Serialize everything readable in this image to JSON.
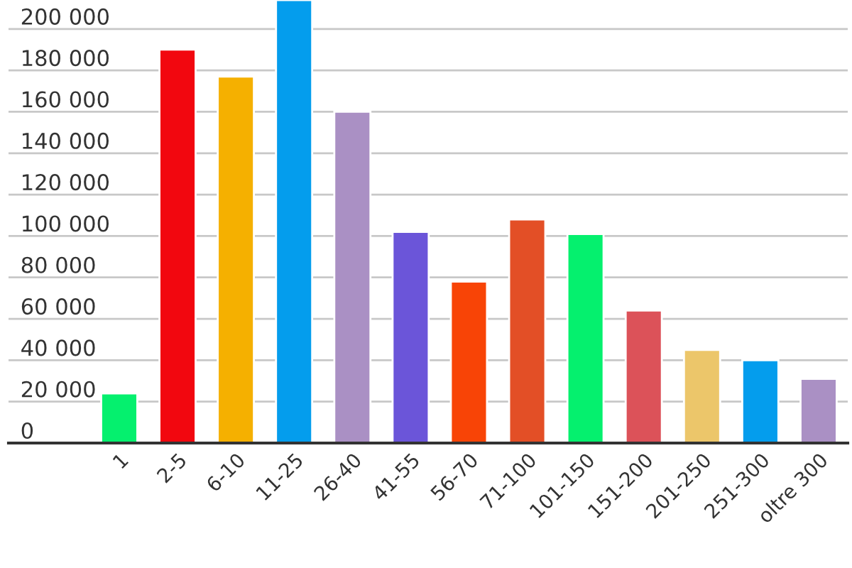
{
  "chart_data": {
    "type": "bar",
    "categories": [
      "1",
      "2-5",
      "6-10",
      "11-25",
      "26-40",
      "41-55",
      "56-70",
      "71-100",
      "101-150",
      "151-200",
      "201-250",
      "251-300",
      "oltre 300"
    ],
    "values": [
      24000,
      190000,
      177000,
      214000,
      160000,
      102000,
      78000,
      108000,
      101000,
      64000,
      45000,
      40000,
      31000
    ],
    "colors": [
      "#05f06e",
      "#f2070f",
      "#f5b000",
      "#049ded",
      "#aa90c4",
      "#6b55d9",
      "#f84406",
      "#e34f26",
      "#05f06e",
      "#dc5259",
      "#ecc66a",
      "#049ded",
      "#aa90c4"
    ],
    "ylim": [
      0,
      214000
    ],
    "yticks": [
      {
        "value": 0,
        "label": "0"
      },
      {
        "value": 20000,
        "label": "20 000"
      },
      {
        "value": 40000,
        "label": "40 000"
      },
      {
        "value": 60000,
        "label": "60 000"
      },
      {
        "value": 80000,
        "label": "80 000"
      },
      {
        "value": 100000,
        "label": "100 000"
      },
      {
        "value": 120000,
        "label": "120 000"
      },
      {
        "value": 140000,
        "label": "140 000"
      },
      {
        "value": 160000,
        "label": "160 000"
      },
      {
        "value": 180000,
        "label": "180 000"
      },
      {
        "value": 200000,
        "label": "200 000"
      }
    ],
    "grid": "y",
    "legend": false
  }
}
